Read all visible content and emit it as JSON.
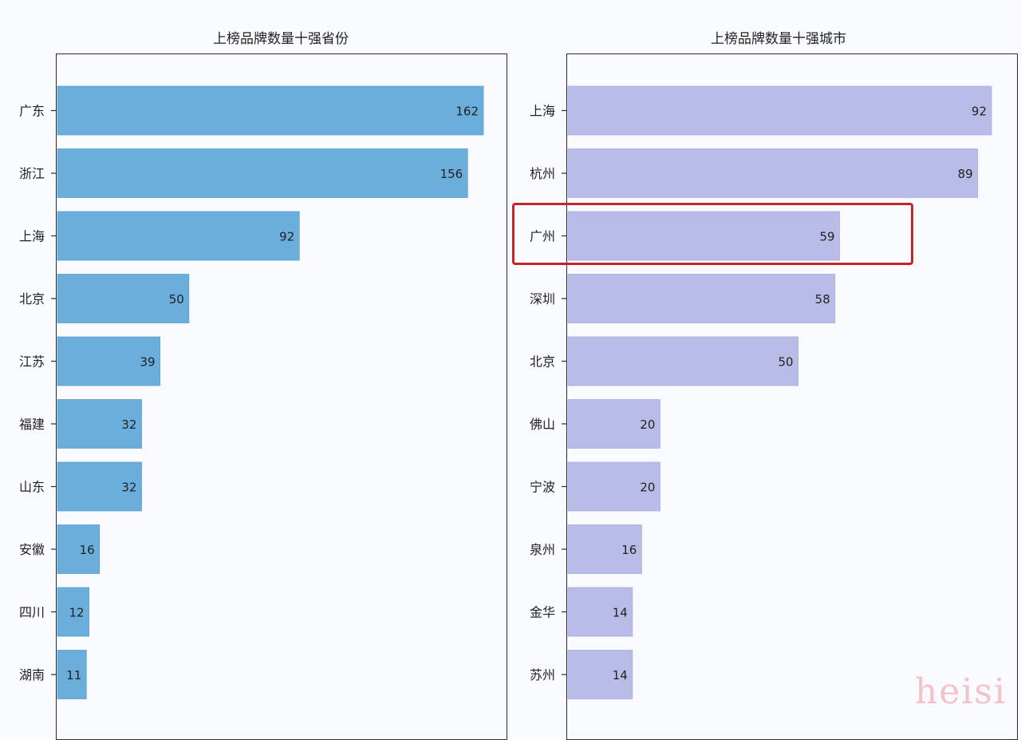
{
  "chart_data": [
    {
      "type": "bar",
      "orientation": "horizontal",
      "title": "上榜品牌数量十强省份",
      "categories": [
        "广东",
        "浙江",
        "上海",
        "北京",
        "江苏",
        "福建",
        "山东",
        "安徽",
        "四川",
        "湖南"
      ],
      "values": [
        162,
        156,
        92,
        50,
        39,
        32,
        32,
        16,
        12,
        11
      ],
      "xlim": [
        0,
        162
      ],
      "bar_color": "#6aaedc",
      "grid": false
    },
    {
      "type": "bar",
      "orientation": "horizontal",
      "title": "上榜品牌数量十强城市",
      "categories": [
        "上海",
        "杭州",
        "广州",
        "深圳",
        "北京",
        "佛山",
        "宁波",
        "泉州",
        "金华",
        "苏州"
      ],
      "values": [
        92,
        89,
        59,
        58,
        50,
        20,
        20,
        16,
        14,
        14
      ],
      "xlim": [
        0,
        92
      ],
      "bar_color": "#b9bce6",
      "highlighted_category": "广州",
      "highlight_color": "#c0262b",
      "grid": false
    }
  ],
  "watermark": "heisi"
}
